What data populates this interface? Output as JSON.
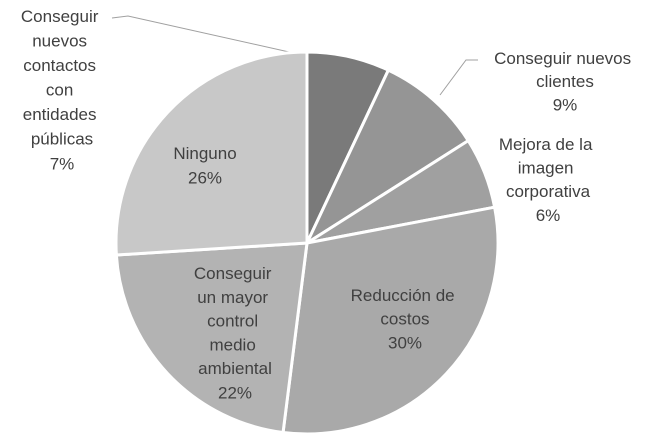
{
  "chart_data": {
    "type": "pie",
    "categories": [
      "Conseguir nuevos contactos con entidades públicas",
      "Conseguir nuevos clientes",
      "Mejora de la imagen corporativa",
      "Reducción de costos",
      "Conseguir un mayor control medio ambiental",
      "Ninguno"
    ],
    "values": [
      7,
      9,
      6,
      30,
      22,
      26
    ],
    "value_labels": [
      "7%",
      "9%",
      "6%",
      "30%",
      "22%",
      "26%"
    ],
    "colors": [
      "#7a7a7a",
      "#959595",
      "#a0a0a0",
      "#a9a9a9",
      "#b3b3b3",
      "#c8c8c8"
    ]
  }
}
